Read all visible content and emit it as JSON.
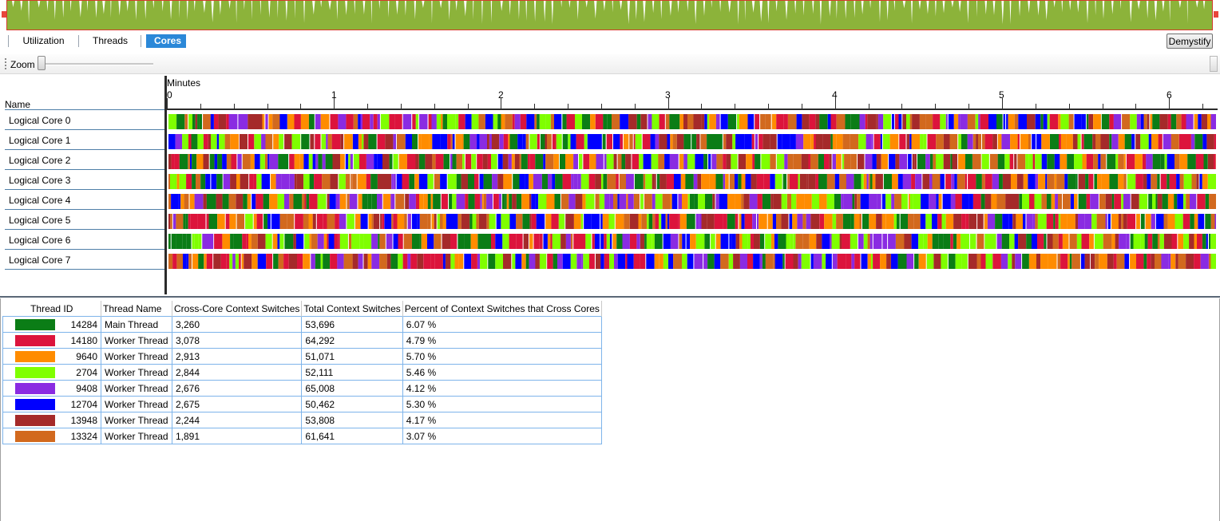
{
  "overview": {
    "fill_color": "#8cb33a",
    "gap_color": "#ffffff",
    "border_color": "#d23b2b",
    "marker_color": "#e8453c"
  },
  "tabs": [
    {
      "label": "Utilization",
      "active": false
    },
    {
      "label": "Threads",
      "active": false
    },
    {
      "label": "Cores",
      "active": true
    }
  ],
  "demystify_label": "Demystify",
  "zoom_label": "Zoom",
  "ruler": {
    "unit_label": "Minutes",
    "labels": [
      "0",
      "1",
      "2",
      "3",
      "4",
      "5",
      "6"
    ]
  },
  "name_header": "Name",
  "cores": [
    {
      "name": "Logical Core 0"
    },
    {
      "name": "Logical Core 1"
    },
    {
      "name": "Logical Core 2"
    },
    {
      "name": "Logical Core 3"
    },
    {
      "name": "Logical Core 4"
    },
    {
      "name": "Logical Core 5"
    },
    {
      "name": "Logical Core 6"
    },
    {
      "name": "Logical Core 7"
    }
  ],
  "table": {
    "headers": [
      "Thread ID",
      "Thread Name",
      "Cross-Core Context Switches",
      "Total Context Switches",
      "Percent of Context Switches that Cross Cores"
    ],
    "rows": [
      {
        "color": "#0b7d16",
        "thread_id": "14284",
        "thread_name": "Main Thread",
        "cross_core": "3,260",
        "total": "53,696",
        "percent": "6.07 %"
      },
      {
        "color": "#dc143c",
        "thread_id": "14180",
        "thread_name": "Worker Thread",
        "cross_core": "3,078",
        "total": "64,292",
        "percent": "4.79 %"
      },
      {
        "color": "#ff8c00",
        "thread_id": "9640",
        "thread_name": "Worker Thread",
        "cross_core": "2,913",
        "total": "51,071",
        "percent": "5.70 %"
      },
      {
        "color": "#7fff00",
        "thread_id": "2704",
        "thread_name": "Worker Thread",
        "cross_core": "2,844",
        "total": "52,111",
        "percent": "5.46 %"
      },
      {
        "color": "#8a2be2",
        "thread_id": "9408",
        "thread_name": "Worker Thread",
        "cross_core": "2,676",
        "total": "65,008",
        "percent": "4.12 %"
      },
      {
        "color": "#0000ff",
        "thread_id": "12704",
        "thread_name": "Worker Thread",
        "cross_core": "2,675",
        "total": "50,462",
        "percent": "5.30 %"
      },
      {
        "color": "#a52a2a",
        "thread_id": "13948",
        "thread_name": "Worker Thread",
        "cross_core": "2,244",
        "total": "53,808",
        "percent": "4.17 %"
      },
      {
        "color": "#d2691e",
        "thread_id": "13324",
        "thread_name": "Worker Thread",
        "cross_core": "1,891",
        "total": "61,641",
        "percent": "3.07 %"
      }
    ]
  }
}
